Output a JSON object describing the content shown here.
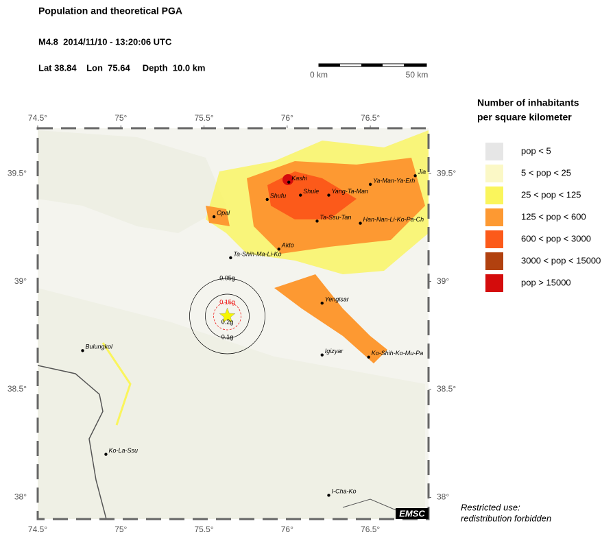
{
  "header": {
    "title": "Population and theoretical PGA",
    "event": "M4.8  2014/11/10 - 13:20:06 UTC",
    "location": "Lat 38.84    Lon  75.64     Depth  10.0 km"
  },
  "scale_bar": {
    "labels": [
      "0 km",
      "50 km"
    ]
  },
  "map": {
    "xlim": [
      74.5,
      76.85
    ],
    "ylim": [
      37.9,
      39.71
    ],
    "lon_ticks": [
      {
        "value": 74.5,
        "label": "74.5°"
      },
      {
        "value": 75,
        "label": "75°"
      },
      {
        "value": 75.5,
        "label": "75.5°"
      },
      {
        "value": 76,
        "label": "76°"
      },
      {
        "value": 76.5,
        "label": "76.5°"
      }
    ],
    "lat_ticks": [
      {
        "value": 39.5,
        "label": "39.5°"
      },
      {
        "value": 39,
        "label": "39°"
      },
      {
        "value": 38.5,
        "label": "38.5°"
      },
      {
        "value": 38,
        "label": "38°"
      }
    ],
    "epicenter": {
      "lon": 75.64,
      "lat": 38.84
    },
    "pga_labels": [
      "0.05g",
      "0.1g",
      "0.15g",
      "0.2g"
    ],
    "cities": [
      {
        "name": "Kashi",
        "lon": 76.01,
        "lat": 39.46
      },
      {
        "name": "Shule",
        "lon": 76.08,
        "lat": 39.4
      },
      {
        "name": "Shufu",
        "lon": 75.88,
        "lat": 39.38
      },
      {
        "name": "Yang-Ta-Man",
        "lon": 76.25,
        "lat": 39.4
      },
      {
        "name": "Ya-Man-Ya-Erh",
        "lon": 76.5,
        "lat": 39.45
      },
      {
        "name": "Jia",
        "lon": 76.77,
        "lat": 39.49
      },
      {
        "name": "Opal",
        "lon": 75.56,
        "lat": 39.3
      },
      {
        "name": "Ta-Ssu-Tan",
        "lon": 76.18,
        "lat": 39.28
      },
      {
        "name": "Han-Nan-Li-Ko-Pa-Ch",
        "lon": 76.44,
        "lat": 39.27
      },
      {
        "name": "Akto",
        "lon": 75.95,
        "lat": 39.15
      },
      {
        "name": "Ta-Shih-Ma-Li-Ko",
        "lon": 75.66,
        "lat": 39.11
      },
      {
        "name": "Yengisar",
        "lon": 76.21,
        "lat": 38.9
      },
      {
        "name": "Bulungkol",
        "lon": 74.77,
        "lat": 38.68
      },
      {
        "name": "Igizyar",
        "lon": 76.21,
        "lat": 38.66
      },
      {
        "name": "Ko-Shih-Ko-Mu-Pa",
        "lon": 76.49,
        "lat": 38.65
      },
      {
        "name": "Ko-La-Ssu",
        "lon": 74.91,
        "lat": 38.2
      },
      {
        "name": "I-Cha-Ko",
        "lon": 76.25,
        "lat": 38.01
      }
    ]
  },
  "legend": {
    "title": [
      "Number of inhabitants",
      "per square kilometer"
    ],
    "items": [
      {
        "label": "pop < 5",
        "color": "#e6e6e6"
      },
      {
        "label": "5 < pop < 25",
        "color": "#fbf8c6"
      },
      {
        "label": "25 < pop < 125",
        "color": "#faf55c"
      },
      {
        "label": "125 < pop < 600",
        "color": "#fd9932"
      },
      {
        "label": "600 < pop < 3000",
        "color": "#fc5a1a"
      },
      {
        "label": "3000 < pop < 15000",
        "color": "#b1410f"
      },
      {
        "label": "pop > 15000",
        "color": "#d40c0c"
      }
    ]
  },
  "note": [
    "Restricted use:",
    "redistribution forbidden"
  ],
  "logo": "EMSC"
}
